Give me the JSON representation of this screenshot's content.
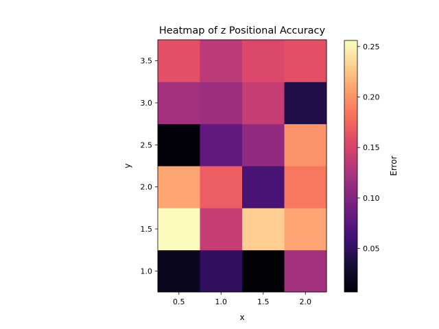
{
  "chart_data": {
    "type": "heatmap",
    "title": "Heatmap of z Positional Accuracy",
    "xlabel": "x",
    "ylabel": "y",
    "x": [
      0.5,
      1.0,
      1.5,
      2.0
    ],
    "y": [
      1.0,
      1.5,
      2.0,
      2.5,
      3.0,
      3.5
    ],
    "x_tick_labels": [
      "0.5",
      "1.0",
      "1.5",
      "2.0"
    ],
    "y_tick_labels": [
      "1.0",
      "1.5",
      "2.0",
      "2.5",
      "3.0",
      "3.5"
    ],
    "values": [
      [
        0.02,
        0.05,
        0.008,
        0.12
      ],
      [
        0.255,
        0.14,
        0.23,
        0.21
      ],
      [
        0.21,
        0.17,
        0.065,
        0.185
      ],
      [
        0.01,
        0.08,
        0.11,
        0.2
      ],
      [
        0.12,
        0.115,
        0.14,
        0.04
      ],
      [
        0.16,
        0.135,
        0.155,
        0.16
      ]
    ],
    "xlim": [
      0.25,
      2.25
    ],
    "ylim": [
      0.75,
      3.75
    ],
    "colormap": "magma",
    "colorbar": {
      "label": "Error",
      "range": [
        0.007,
        0.256
      ],
      "ticks": [
        0.05,
        0.1,
        0.15,
        0.2,
        0.25
      ],
      "tick_labels": [
        "0.05",
        "0.10",
        "0.15",
        "0.20",
        "0.25"
      ]
    },
    "grid": false
  }
}
